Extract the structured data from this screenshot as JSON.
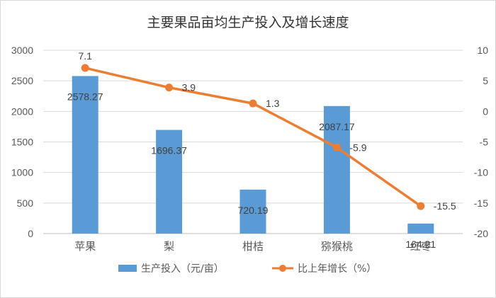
{
  "chart_data": {
    "type": "bar",
    "title": "主要果品亩均生产投入及增长速度",
    "categories": [
      "苹果",
      "梨",
      "柑桔",
      "猕猴桃",
      "红枣"
    ],
    "series": [
      {
        "name": "生产投入（元/亩）",
        "type": "bar",
        "axis": "left",
        "color": "#5B9BD5",
        "values": [
          2578.27,
          1696.37,
          720.19,
          2087.17,
          164.21
        ],
        "labels": [
          "2578.27",
          "1696.37",
          "720.19",
          "2087.17",
          "164.21"
        ]
      },
      {
        "name": "比上年增长（%）",
        "type": "line",
        "axis": "right",
        "color": "#ED7D31",
        "values": [
          7.1,
          3.9,
          1.3,
          -5.9,
          -15.5
        ],
        "labels": [
          "7.1",
          "3.9",
          "1.3",
          "-5.9",
          "-15.5"
        ]
      }
    ],
    "y_left": {
      "min": 0,
      "max": 3000,
      "ticks": [
        "0",
        "500",
        "1000",
        "1500",
        "2000",
        "2500",
        "3000"
      ]
    },
    "y_right": {
      "min": -20,
      "max": 10,
      "ticks": [
        "-20",
        "-15",
        "-10",
        "-5",
        "0",
        "5",
        "10"
      ]
    },
    "legend_position": "bottom",
    "gridlines": true
  }
}
